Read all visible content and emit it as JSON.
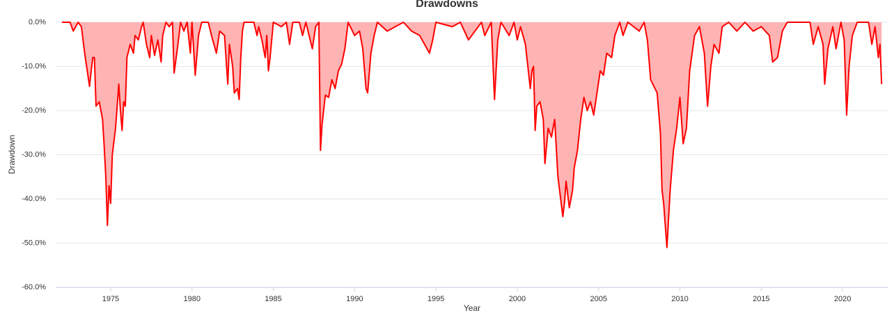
{
  "chart_data": {
    "type": "area",
    "title": "Drawdowns",
    "x_label": "Year",
    "y_label": "Drawdown",
    "color": "#ff0000",
    "fill_color": "#ffb3b3",
    "grid": true,
    "xlim": [
      1971.62,
      2022.82
    ],
    "xticks": [
      1975,
      1980,
      1985,
      1990,
      1995,
      2000,
      2005,
      2010,
      2015,
      2020
    ],
    "ylim": [
      -60,
      0
    ],
    "yticks": [
      {
        "value": 0,
        "label": "0.0%"
      },
      {
        "value": -10,
        "label": "-10.0%"
      },
      {
        "value": -20,
        "label": "-20.0%"
      },
      {
        "value": -30,
        "label": "-30.0%"
      },
      {
        "value": -40,
        "label": "-40.0%"
      },
      {
        "value": -50,
        "label": "-50.0%"
      },
      {
        "value": -60,
        "label": "-60.0%"
      }
    ],
    "x": [
      1972.0,
      1972.5,
      1972.7,
      1973.0,
      1973.2,
      1973.4,
      1973.6,
      1973.7,
      1973.8,
      1973.9,
      1974.0,
      1974.1,
      1974.3,
      1974.5,
      1974.6,
      1974.7,
      1974.8,
      1974.9,
      1975.0,
      1975.1,
      1975.3,
      1975.5,
      1975.6,
      1975.7,
      1975.8,
      1975.9,
      1976.0,
      1976.2,
      1976.4,
      1976.5,
      1976.7,
      1976.9,
      1977.0,
      1977.2,
      1977.4,
      1977.5,
      1977.7,
      1977.9,
      1978.1,
      1978.2,
      1978.4,
      1978.6,
      1978.8,
      1978.9,
      1979.1,
      1979.3,
      1979.5,
      1979.7,
      1979.9,
      1980.0,
      1980.2,
      1980.4,
      1980.6,
      1981.0,
      1981.2,
      1981.5,
      1981.7,
      1982.0,
      1982.2,
      1982.3,
      1982.5,
      1982.6,
      1982.8,
      1982.9,
      1983.0,
      1983.1,
      1983.2,
      1983.8,
      1984.0,
      1984.1,
      1984.3,
      1984.5,
      1984.6,
      1984.7,
      1984.8,
      1985.0,
      1985.5,
      1985.8,
      1986.0,
      1986.2,
      1986.6,
      1986.8,
      1987.0,
      1987.4,
      1987.6,
      1987.8,
      1987.9,
      1988.0,
      1988.2,
      1988.4,
      1988.6,
      1988.8,
      1989.0,
      1989.2,
      1989.4,
      1989.6,
      1990.0,
      1990.3,
      1990.5,
      1990.7,
      1990.8,
      1991.0,
      1991.2,
      1991.4,
      1992.0,
      1992.5,
      1993.0,
      1993.5,
      1994.0,
      1994.3,
      1994.6,
      1994.8,
      1995.0,
      1996.0,
      1996.5,
      1997.0,
      1997.4,
      1997.8,
      1998.0,
      1998.4,
      1998.6,
      1998.8,
      1999.0,
      1999.5,
      1999.8,
      2000.0,
      2000.2,
      2000.5,
      2000.8,
      2000.9,
      2001.0,
      2001.1,
      2001.2,
      2001.4,
      2001.6,
      2001.7,
      2001.9,
      2002.1,
      2002.3,
      2002.5,
      2002.6,
      2002.8,
      2002.9,
      2003.0,
      2003.2,
      2003.4,
      2003.5,
      2003.7,
      2003.9,
      2004.1,
      2004.3,
      2004.5,
      2004.7,
      2004.9,
      2005.1,
      2005.3,
      2005.5,
      2005.8,
      2006.0,
      2006.3,
      2006.5,
      2006.8,
      2007.5,
      2007.8,
      2008.0,
      2008.2,
      2008.4,
      2008.6,
      2008.8,
      2008.9,
      2009.0,
      2009.1,
      2009.2,
      2009.4,
      2009.6,
      2009.8,
      2010.0,
      2010.2,
      2010.4,
      2010.6,
      2010.9,
      2011.2,
      2011.5,
      2011.7,
      2011.9,
      2012.1,
      2012.4,
      2012.6,
      2013.0,
      2013.5,
      2014.0,
      2014.5,
      2015.0,
      2015.5,
      2015.7,
      2016.0,
      2016.3,
      2016.6,
      2018.0,
      2018.2,
      2018.5,
      2018.8,
      2018.9,
      2019.1,
      2019.4,
      2019.6,
      2019.9,
      2020.1,
      2020.25,
      2020.4,
      2020.6,
      2020.9,
      2021.6,
      2021.8,
      2022.0,
      2022.2,
      2022.3,
      2022.4
    ],
    "values": [
      0,
      0,
      -2,
      0,
      -1,
      -7,
      -12,
      -14.5,
      -11,
      -8,
      -8,
      -19,
      -18,
      -22,
      -28,
      -35,
      -46,
      -37,
      -41,
      -30,
      -24,
      -14,
      -20,
      -24.5,
      -18,
      -19,
      -8,
      -5,
      -7,
      -3,
      -4,
      -1,
      0,
      -5,
      -8,
      -3,
      -7.5,
      -4,
      -9,
      -3,
      0,
      -1,
      0,
      -11.5,
      -6,
      0,
      -2,
      0,
      -7,
      0,
      -12,
      -3,
      0,
      0,
      -3,
      -7,
      -2,
      -3,
      -14,
      -5,
      -10,
      -16,
      -15,
      -17.5,
      -8,
      -2,
      0,
      0,
      -3,
      -1,
      -4,
      -8,
      -3,
      -11,
      -8,
      0,
      -1,
      0,
      -5,
      0,
      0,
      -3,
      0,
      -6,
      -1,
      0,
      -29,
      -23,
      -16.5,
      -17,
      -13,
      -15,
      -11,
      -9.5,
      -6,
      0,
      -3,
      -2,
      -6,
      -15,
      -16,
      -7,
      -3,
      0,
      -2,
      -1,
      0,
      -2,
      -3,
      -5,
      -7,
      -4,
      0,
      -1,
      0,
      -4,
      -2,
      0,
      -3,
      0,
      -17.5,
      -4,
      0,
      -3,
      0,
      -4,
      -1,
      -5,
      -15,
      -11,
      -10,
      -24.5,
      -19,
      -18,
      -22,
      -32,
      -24,
      -26,
      -22,
      -35,
      -38,
      -44,
      -41,
      -36,
      -42,
      -38,
      -33,
      -29,
      -22,
      -17,
      -20,
      -18,
      -21,
      -16,
      -11,
      -12,
      -7,
      -8,
      -3,
      0,
      -3,
      0,
      -2,
      0,
      -4,
      -13,
      -14.5,
      -16,
      -25,
      -38,
      -41,
      -46,
      -51,
      -38,
      -29,
      -24,
      -17,
      -27.5,
      -24,
      -11,
      -3,
      -1,
      -7,
      -19,
      -10,
      -5,
      -7,
      -1,
      0,
      -2,
      0,
      -2,
      -1,
      -3,
      -9,
      -8,
      -2,
      0,
      0,
      -5,
      -1,
      -5,
      -14,
      -6,
      -1,
      -6,
      0,
      -4,
      -21,
      -10,
      -3,
      0,
      0,
      -5,
      -1,
      -8,
      -5,
      -14
    ]
  }
}
